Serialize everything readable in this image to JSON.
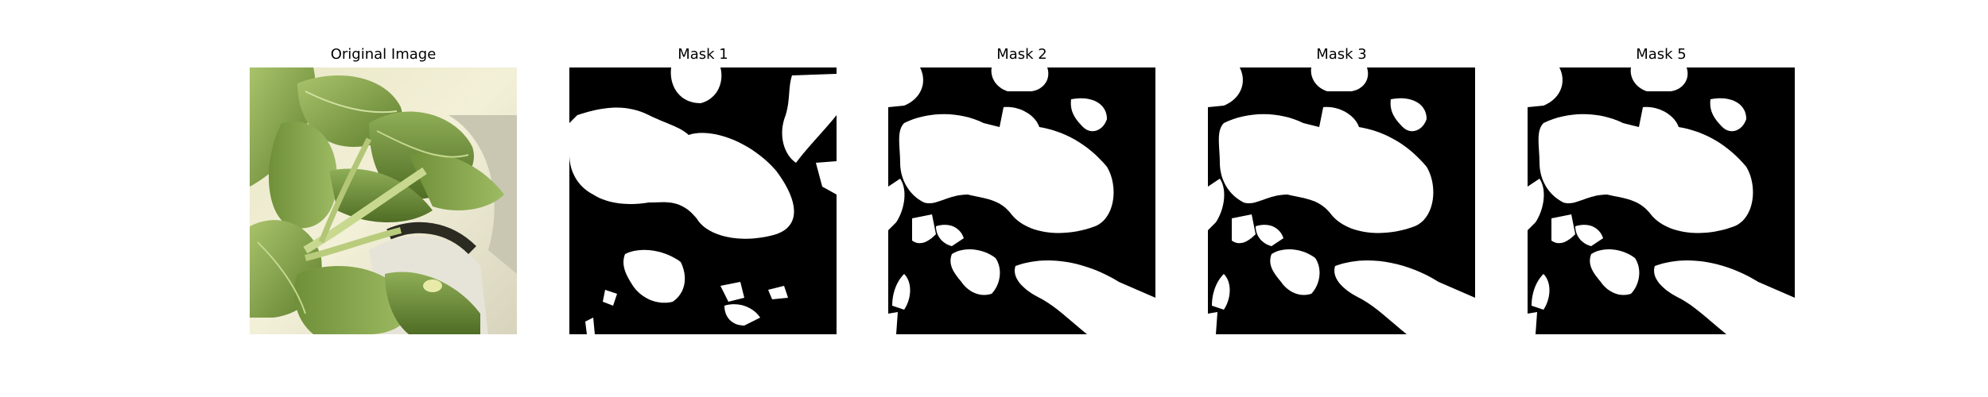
{
  "panels": [
    {
      "title": "Original Image",
      "kind": "photo"
    },
    {
      "title": "Mask 1",
      "kind": "mask"
    },
    {
      "title": "Mask 2",
      "kind": "mask"
    },
    {
      "title": "Mask 3",
      "kind": "mask"
    },
    {
      "title": "Mask 5",
      "kind": "mask"
    }
  ]
}
